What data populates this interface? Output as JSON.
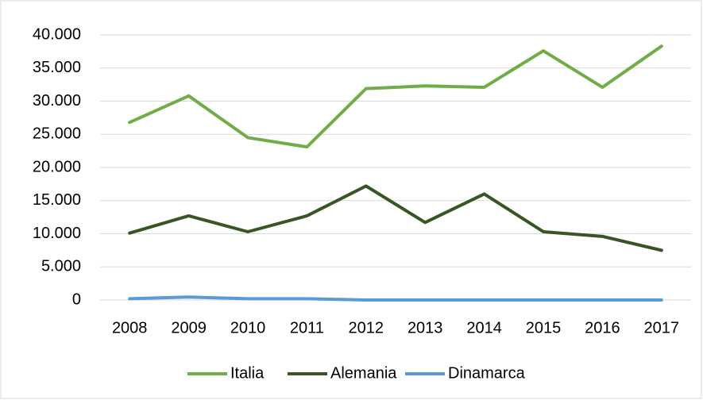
{
  "chart_data": {
    "type": "line",
    "categories": [
      "2008",
      "2009",
      "2010",
      "2011",
      "2012",
      "2013",
      "2014",
      "2015",
      "2016",
      "2017"
    ],
    "series": [
      {
        "name": "Italia",
        "color": "#70ad47",
        "values": [
          26800,
          30800,
          24500,
          23100,
          31900,
          32300,
          32100,
          37600,
          32100,
          38300
        ]
      },
      {
        "name": "Alemania",
        "color": "#375623",
        "values": [
          10100,
          12700,
          10300,
          12700,
          17200,
          11700,
          16000,
          10300,
          9600,
          7500
        ]
      },
      {
        "name": "Dinamarca",
        "color": "#5b9bd5",
        "values": [
          200,
          450,
          200,
          200,
          0,
          0,
          0,
          0,
          0,
          0
        ]
      }
    ],
    "ylim": [
      0,
      40000
    ],
    "yticks": [
      0,
      {
        "value": 5000,
        "label": "5.000"
      },
      {
        "value": 10000,
        "label": "10.000"
      },
      {
        "value": 15000,
        "label": "15.000"
      },
      {
        "value": 20000,
        "label": "20.000"
      },
      {
        "value": 25000,
        "label": "25.000"
      },
      {
        "value": 30000,
        "label": "30.000"
      },
      {
        "value": 35000,
        "label": "35.000"
      },
      {
        "value": 40000,
        "label": "40.000"
      }
    ],
    "grid": true,
    "legend": "bottom"
  }
}
